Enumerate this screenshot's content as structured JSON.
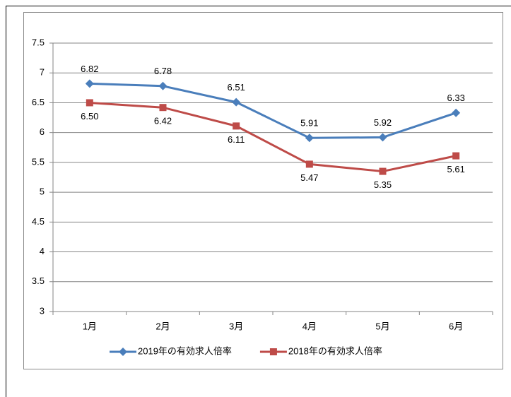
{
  "chart_data": {
    "type": "line",
    "categories": [
      "1月",
      "2月",
      "3月",
      "4月",
      "5月",
      "6月"
    ],
    "series": [
      {
        "name": "2019年の有効求人倍率",
        "color": "#4a7ebb",
        "marker": "diamond",
        "label_position": "above",
        "values": [
          6.82,
          6.78,
          6.51,
          5.91,
          5.92,
          6.33
        ],
        "value_labels": [
          "6.82",
          "6.78",
          "6.51",
          "5.91",
          "5.92",
          "6.33"
        ]
      },
      {
        "name": "2018年の有効求人倍率",
        "color": "#be4b48",
        "marker": "square",
        "label_position": "below",
        "values": [
          6.5,
          6.42,
          6.11,
          5.47,
          5.35,
          5.61
        ],
        "value_labels": [
          "6.50",
          "6.42",
          "6.11",
          "5.47",
          "5.35",
          "5.61"
        ]
      }
    ],
    "ylim": [
      3,
      7.5
    ],
    "yticks": [
      3,
      3.5,
      4,
      4.5,
      5,
      5.5,
      6,
      6.5,
      7,
      7.5
    ],
    "grid": true,
    "legend": "bottom"
  }
}
